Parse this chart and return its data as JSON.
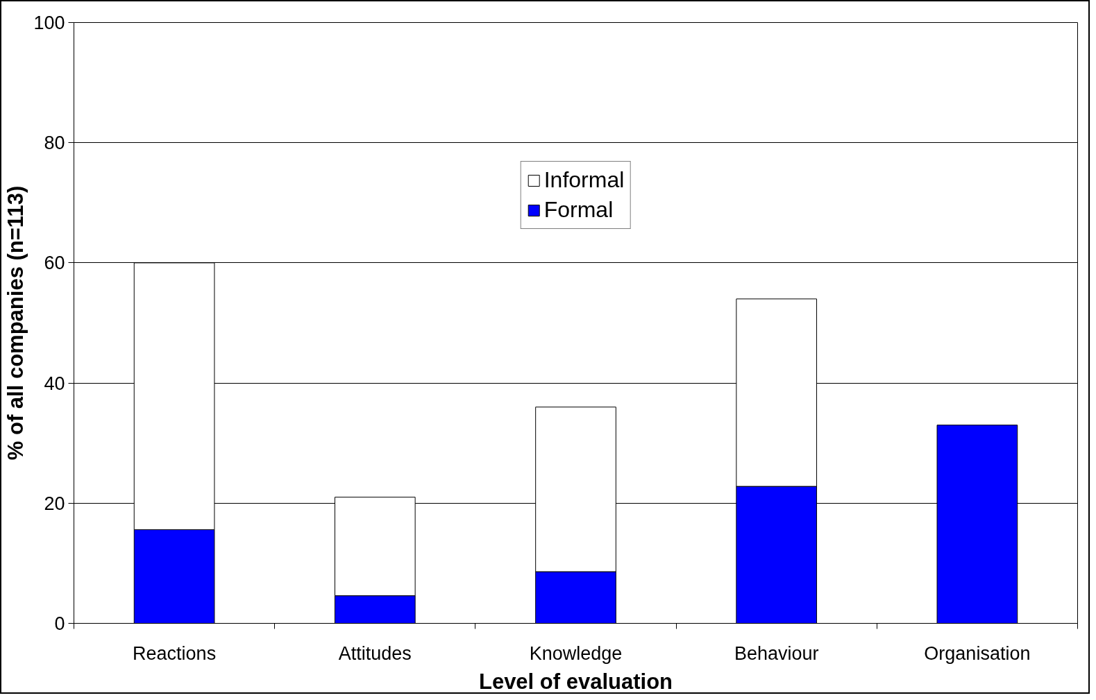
{
  "chart_data": {
    "type": "bar",
    "stacked": true,
    "xlabel": "Level of evaluation",
    "ylabel": "% of all companies (n=113)",
    "categories": [
      "Reactions",
      "Attitudes",
      "Knowledge",
      "Behaviour",
      "Organisation"
    ],
    "series": [
      {
        "name": "Formal",
        "color": "#0000ff",
        "values": [
          15.6,
          4.6,
          8.6,
          22.8,
          33.0
        ]
      },
      {
        "name": "Informal",
        "color": "#ffffff",
        "values": [
          44.4,
          16.4,
          27.4,
          31.2,
          null
        ]
      }
    ],
    "ylim": [
      0,
      100
    ],
    "yticks": [
      0,
      20,
      40,
      60,
      80,
      100
    ],
    "grid": "y",
    "legend": "top"
  }
}
